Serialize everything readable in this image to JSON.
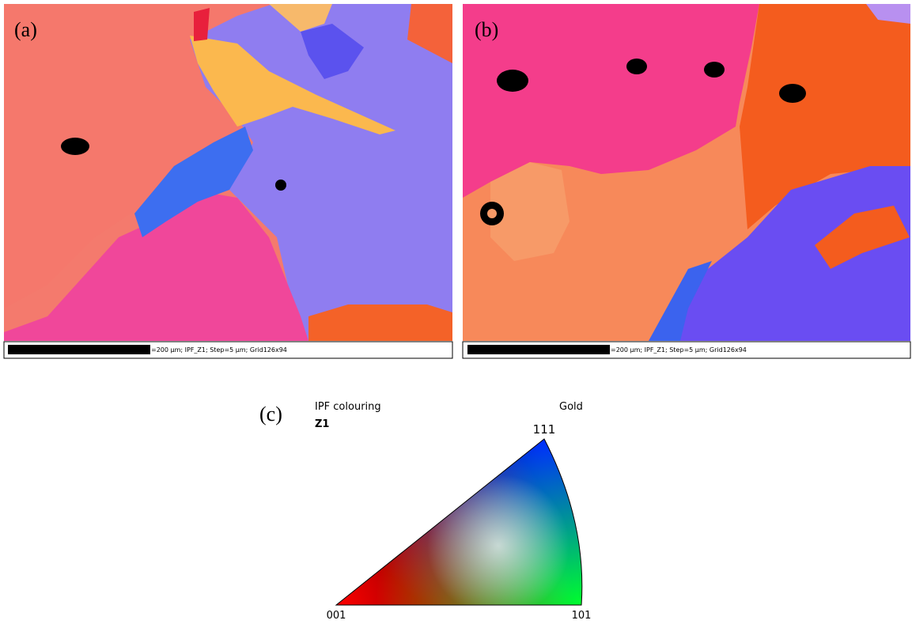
{
  "panels": [
    {
      "label": "(a)",
      "scale_bar_text": "=200 µm; IPF_Z1; Step=5 µm; Grid126x94"
    },
    {
      "label": "(b)",
      "scale_bar_text": "=200 µm; IPF_Z1; Step=5 µm; Grid126x94"
    }
  ],
  "legend": {
    "label": "(c)",
    "title": "IPF colouring",
    "subtitle": "Z1",
    "phase": "Gold",
    "vertices": {
      "top": "111",
      "left": "001",
      "right": "101"
    }
  }
}
